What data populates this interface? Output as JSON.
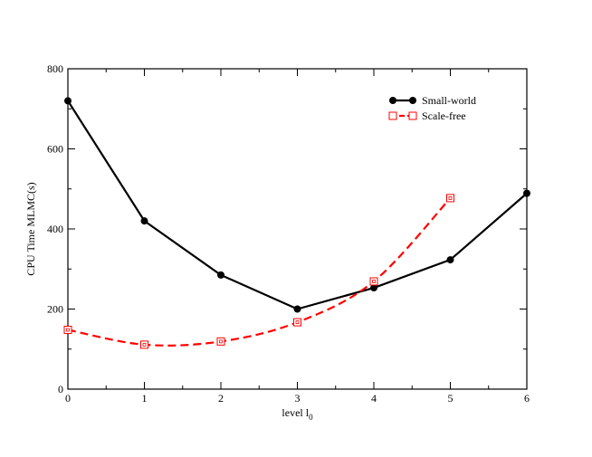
{
  "chart_data": {
    "type": "line",
    "title": "",
    "xlabel": "level l",
    "xlabel_sub": "0",
    "ylabel": "CPU Time MLMC(s)",
    "xlim": [
      0,
      6
    ],
    "ylim": [
      0,
      800
    ],
    "xticks": [
      0,
      1,
      2,
      3,
      4,
      5,
      6
    ],
    "yticks": [
      0,
      200,
      400,
      600,
      800
    ],
    "grid": false,
    "legend_position": "top-right",
    "series": [
      {
        "name": "Small-world",
        "color": "#000000",
        "line_style": "solid",
        "marker": "filled-circle",
        "x": [
          0,
          1,
          2,
          3,
          4,
          5,
          6
        ],
        "y": [
          720,
          420,
          285,
          200,
          253,
          323,
          489
        ]
      },
      {
        "name": "Scale-free",
        "color": "#ff0000",
        "line_style": "dashed",
        "marker": "open-square",
        "x": [
          0,
          1,
          2,
          3,
          4,
          5
        ],
        "y": [
          148,
          111,
          119,
          167,
          269,
          477
        ]
      }
    ]
  }
}
